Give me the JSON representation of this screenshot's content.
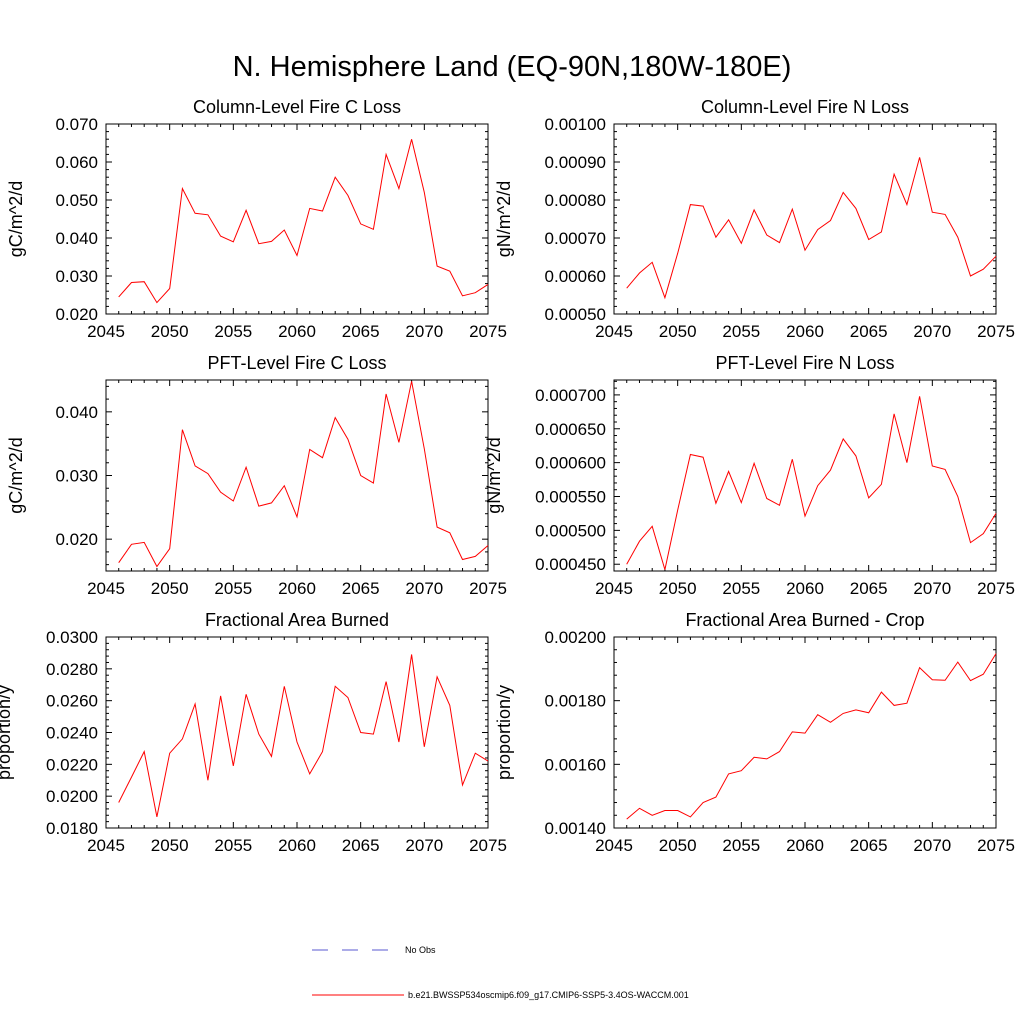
{
  "main_title": "N. Hemisphere Land (EQ-90N,180W-180E)",
  "line_color": "#ff0000",
  "obs_color": "#5a5ad2",
  "legend": {
    "obs_label": "No Obs",
    "model_label": "b.e21.BWSSP534oscmip6.f09_g17.CMIP6-SSP5-3.4OS-WACCM.001"
  },
  "chart_data": [
    {
      "type": "line",
      "title": "Column-Level Fire C Loss",
      "ylabel": "gC/m^2/d",
      "xlim": [
        2045,
        2075
      ],
      "ylim": [
        0.02,
        0.07
      ],
      "xticks": [
        2045,
        2050,
        2055,
        2060,
        2065,
        2070,
        2075
      ],
      "yticks": [
        0.02,
        0.03,
        0.04,
        0.05,
        0.06,
        0.07
      ],
      "ytick_labels": [
        "0.020",
        "0.030",
        "0.040",
        "0.050",
        "0.060",
        "0.070"
      ],
      "x": [
        2046,
        2047,
        2048,
        2049,
        2050,
        2051,
        2052,
        2053,
        2054,
        2055,
        2056,
        2057,
        2058,
        2059,
        2060,
        2061,
        2062,
        2063,
        2064,
        2065,
        2066,
        2067,
        2068,
        2069,
        2070,
        2071,
        2072,
        2073,
        2074,
        2075
      ],
      "values": [
        0.0245,
        0.0283,
        0.0285,
        0.023,
        0.0267,
        0.053,
        0.0465,
        0.0461,
        0.0405,
        0.039,
        0.0473,
        0.0385,
        0.0391,
        0.0421,
        0.0354,
        0.0478,
        0.0471,
        0.056,
        0.0512,
        0.0437,
        0.0423,
        0.062,
        0.053,
        0.066,
        0.052,
        0.0326,
        0.0313,
        0.0248,
        0.0256,
        0.0278
      ]
    },
    {
      "type": "line",
      "title": "Column-Level Fire N Loss",
      "ylabel": "gN/m^2/d",
      "xlim": [
        2045,
        2075
      ],
      "ylim": [
        0.0005,
        0.001
      ],
      "xticks": [
        2045,
        2050,
        2055,
        2060,
        2065,
        2070,
        2075
      ],
      "yticks": [
        0.0005,
        0.0006,
        0.0007,
        0.0008,
        0.0009,
        0.001
      ],
      "ytick_labels": [
        "0.00050",
        "0.00060",
        "0.00070",
        "0.00080",
        "0.00090",
        "0.00100"
      ],
      "x": [
        2046,
        2047,
        2048,
        2049,
        2050,
        2051,
        2052,
        2053,
        2054,
        2055,
        2056,
        2057,
        2058,
        2059,
        2060,
        2061,
        2062,
        2063,
        2064,
        2065,
        2066,
        2067,
        2068,
        2069,
        2070,
        2071,
        2072,
        2073,
        2074,
        2075
      ],
      "values": [
        0.000568,
        0.000608,
        0.000636,
        0.000543,
        0.00066,
        0.000788,
        0.000784,
        0.000702,
        0.000748,
        0.000686,
        0.000774,
        0.000708,
        0.000688,
        0.000776,
        0.000668,
        0.000722,
        0.000746,
        0.00082,
        0.000778,
        0.000696,
        0.000716,
        0.000868,
        0.000788,
        0.000912,
        0.000768,
        0.000762,
        0.000702,
        0.0006,
        0.000618,
        0.000652
      ]
    },
    {
      "type": "line",
      "title": "PFT-Level Fire C Loss",
      "ylabel": "gC/m^2/d",
      "xlim": [
        2045,
        2075
      ],
      "ylim": [
        0.015,
        0.045
      ],
      "xticks": [
        2045,
        2050,
        2055,
        2060,
        2065,
        2070,
        2075
      ],
      "yticks": [
        0.02,
        0.03,
        0.04
      ],
      "ytick_labels": [
        "0.020",
        "0.030",
        "0.040"
      ],
      "x": [
        2046,
        2047,
        2048,
        2049,
        2050,
        2051,
        2052,
        2053,
        2054,
        2055,
        2056,
        2057,
        2058,
        2059,
        2060,
        2061,
        2062,
        2063,
        2064,
        2065,
        2066,
        2067,
        2068,
        2069,
        2070,
        2071,
        2072,
        2073,
        2074,
        2075
      ],
      "values": [
        0.0163,
        0.0192,
        0.0195,
        0.0157,
        0.0185,
        0.0372,
        0.0315,
        0.0303,
        0.0274,
        0.026,
        0.0313,
        0.0252,
        0.0257,
        0.0284,
        0.0235,
        0.0341,
        0.0328,
        0.0391,
        0.0357,
        0.03,
        0.0288,
        0.0428,
        0.0352,
        0.0448,
        0.0342,
        0.0219,
        0.021,
        0.0168,
        0.0173,
        0.019
      ]
    },
    {
      "type": "line",
      "title": "PFT-Level Fire N Loss",
      "ylabel": "gN/m^2/d",
      "xlim": [
        2045,
        2075
      ],
      "ylim": [
        0.00044,
        0.000722
      ],
      "xticks": [
        2045,
        2050,
        2055,
        2060,
        2065,
        2070,
        2075
      ],
      "yticks": [
        0.00045,
        0.0005,
        0.00055,
        0.0006,
        0.00065,
        0.0007
      ],
      "ytick_labels": [
        "0.000450",
        "0.000500",
        "0.000550",
        "0.000600",
        "0.000650",
        "0.000700"
      ],
      "x": [
        2046,
        2047,
        2048,
        2049,
        2050,
        2051,
        2052,
        2053,
        2054,
        2055,
        2056,
        2057,
        2058,
        2059,
        2060,
        2061,
        2062,
        2063,
        2064,
        2065,
        2066,
        2067,
        2068,
        2069,
        2070,
        2071,
        2072,
        2073,
        2074,
        2075
      ],
      "values": [
        0.00045,
        0.000484,
        0.000506,
        0.000442,
        0.00053,
        0.000612,
        0.000608,
        0.00054,
        0.000587,
        0.000541,
        0.000599,
        0.000547,
        0.000537,
        0.000605,
        0.000521,
        0.000566,
        0.000589,
        0.000635,
        0.00061,
        0.000548,
        0.000568,
        0.000672,
        0.0006,
        0.000698,
        0.000595,
        0.00059,
        0.00055,
        0.000482,
        0.000495,
        0.000525
      ]
    },
    {
      "type": "line",
      "title": "Fractional Area Burned",
      "ylabel": "proportion/y",
      "xlim": [
        2045,
        2075
      ],
      "ylim": [
        0.018,
        0.03
      ],
      "xticks": [
        2045,
        2050,
        2055,
        2060,
        2065,
        2070,
        2075
      ],
      "yticks": [
        0.018,
        0.02,
        0.022,
        0.024,
        0.026,
        0.028,
        0.03
      ],
      "ytick_labels": [
        "0.0180",
        "0.0200",
        "0.0220",
        "0.0240",
        "0.0260",
        "0.0280",
        "0.0300"
      ],
      "x": [
        2046,
        2047,
        2048,
        2049,
        2050,
        2051,
        2052,
        2053,
        2054,
        2055,
        2056,
        2057,
        2058,
        2059,
        2060,
        2061,
        2062,
        2063,
        2064,
        2065,
        2066,
        2067,
        2068,
        2069,
        2070,
        2071,
        2072,
        2073,
        2074,
        2075
      ],
      "values": [
        0.0196,
        0.0212,
        0.0228,
        0.0187,
        0.0227,
        0.0236,
        0.0258,
        0.021,
        0.0263,
        0.0219,
        0.0264,
        0.0239,
        0.0225,
        0.0269,
        0.0234,
        0.0214,
        0.0228,
        0.0269,
        0.0262,
        0.024,
        0.0239,
        0.0272,
        0.0234,
        0.0289,
        0.0231,
        0.0275,
        0.0257,
        0.0207,
        0.0227,
        0.0222
      ]
    },
    {
      "type": "line",
      "title": "Fractional Area Burned - Crop",
      "ylabel": "proportion/y",
      "xlim": [
        2045,
        2075
      ],
      "ylim": [
        0.0014,
        0.002
      ],
      "xticks": [
        2045,
        2050,
        2055,
        2060,
        2065,
        2070,
        2075
      ],
      "yticks": [
        0.0014,
        0.0016,
        0.0018,
        0.002
      ],
      "ytick_labels": [
        "0.00140",
        "0.00160",
        "0.00180",
        "0.00200"
      ],
      "x": [
        2046,
        2047,
        2048,
        2049,
        2050,
        2051,
        2052,
        2053,
        2054,
        2055,
        2056,
        2057,
        2058,
        2059,
        2060,
        2061,
        2062,
        2063,
        2064,
        2065,
        2066,
        2067,
        2068,
        2069,
        2070,
        2071,
        2072,
        2073,
        2074,
        2075
      ],
      "values": [
        0.001428,
        0.001462,
        0.00144,
        0.001455,
        0.001455,
        0.001435,
        0.00148,
        0.001497,
        0.00157,
        0.00158,
        0.001622,
        0.001617,
        0.00164,
        0.001702,
        0.001698,
        0.001756,
        0.001732,
        0.00176,
        0.001771,
        0.001762,
        0.001827,
        0.001785,
        0.001792,
        0.001904,
        0.001866,
        0.001864,
        0.001921,
        0.001863,
        0.001883,
        0.001948
      ]
    }
  ]
}
